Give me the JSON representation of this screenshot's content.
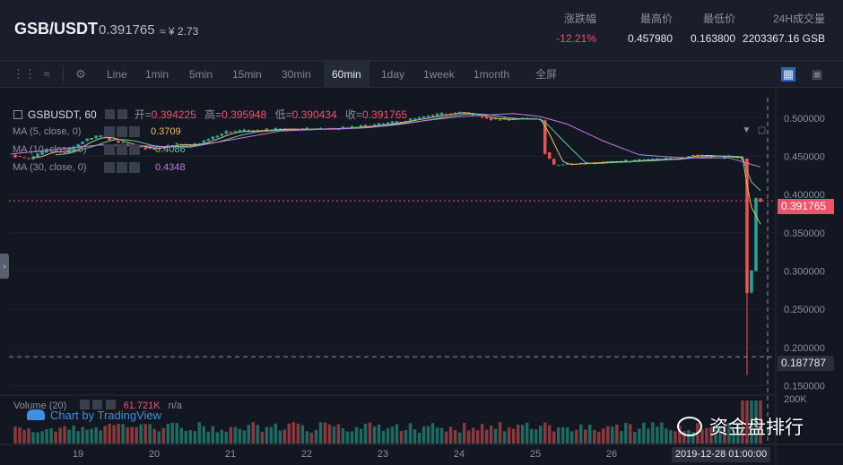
{
  "header": {
    "pair": "GSB/USDT",
    "price": "0.391765",
    "cny": "≈ ¥ 2.73",
    "stats": [
      {
        "label": "涨跌幅",
        "value": "-12.21%",
        "color": "#f0526b"
      },
      {
        "label": "最高价",
        "value": "0.457980",
        "color": "#e6e8ee"
      },
      {
        "label": "最低价",
        "value": "0.163800",
        "color": "#e6e8ee"
      },
      {
        "label": "24H成交量",
        "value": "2203367.16 GSB",
        "color": "#e6e8ee"
      }
    ]
  },
  "toolbar": {
    "intervals": [
      "Line",
      "1min",
      "5min",
      "15min",
      "30min",
      "60min",
      "1day",
      "1week",
      "1month",
      "全屏"
    ],
    "active": "60min",
    "icons": [
      "candles-icon",
      "line-style-icon",
      "settings-icon",
      "indicator-icon",
      "fullscreen-chart-icon"
    ]
  },
  "legend": {
    "symbol": "GSBUSDT, 60",
    "open_label": "开=",
    "open": "0.394225",
    "high_label": "高=",
    "high": "0.395948",
    "low_label": "低=",
    "low": "0.390434",
    "close_label": "收=",
    "close": "0.391765",
    "ma": [
      {
        "label": "MA (5, close, 0)",
        "value": "0.3709",
        "color": "#e8c15f"
      },
      {
        "label": "MA (10, close, 0)",
        "value": "0.4086",
        "color": "#6cc39b"
      },
      {
        "label": "MA (30, close, 0)",
        "value": "0.4348",
        "color": "#c27be6"
      }
    ],
    "volume_label": "Volume (20)",
    "volume_value": "61.721K",
    "volume_extra": "n/a"
  },
  "branding": {
    "tradingview": "Chart by TradingView",
    "watermark": "资金盘排行"
  },
  "price_tags": {
    "current": "0.391765",
    "low_marker": "0.187787"
  },
  "crosshair_date": "2019-12-28 01:00:00",
  "colors": {
    "up": "#26a69a",
    "down": "#ef5350",
    "background": "#131722",
    "ma5": "#e8c15f",
    "ma10": "#6cc39b",
    "ma30": "#c27be6"
  },
  "chart_data": {
    "type": "candlestick",
    "y_ticks": [
      "0.500000",
      "0.450000",
      "0.400000",
      "0.350000",
      "0.300000",
      "0.250000",
      "0.200000",
      "0.150000"
    ],
    "ylim": [
      0.14,
      0.515
    ],
    "x_ticks": [
      "19",
      "20",
      "21",
      "22",
      "23",
      "24",
      "25",
      "26"
    ],
    "volume_tick": "200K",
    "close_path": [
      [
        0,
        0.452
      ],
      [
        4,
        0.446
      ],
      [
        8,
        0.458
      ],
      [
        12,
        0.454
      ],
      [
        16,
        0.47
      ],
      [
        20,
        0.477
      ],
      [
        24,
        0.468
      ],
      [
        28,
        0.462
      ],
      [
        32,
        0.46
      ],
      [
        36,
        0.466
      ],
      [
        40,
        0.464
      ],
      [
        44,
        0.472
      ],
      [
        48,
        0.482
      ],
      [
        52,
        0.483
      ],
      [
        56,
        0.484
      ],
      [
        60,
        0.486
      ],
      [
        64,
        0.485
      ],
      [
        68,
        0.486
      ],
      [
        72,
        0.486
      ],
      [
        76,
        0.488
      ],
      [
        80,
        0.49
      ],
      [
        84,
        0.493
      ],
      [
        88,
        0.497
      ],
      [
        92,
        0.501
      ],
      [
        96,
        0.505
      ],
      [
        100,
        0.508
      ],
      [
        104,
        0.502
      ],
      [
        108,
        0.498
      ],
      [
        112,
        0.499
      ],
      [
        116,
        0.499
      ],
      [
        118,
        0.497
      ],
      [
        119,
        0.455
      ],
      [
        121,
        0.438
      ],
      [
        124,
        0.44
      ],
      [
        128,
        0.441
      ],
      [
        132,
        0.443
      ],
      [
        136,
        0.443
      ],
      [
        140,
        0.445
      ],
      [
        144,
        0.446
      ],
      [
        148,
        0.447
      ],
      [
        152,
        0.452
      ],
      [
        156,
        0.45
      ],
      [
        160,
        0.449
      ],
      [
        163,
        0.447
      ],
      [
        164,
        0.272
      ],
      [
        165,
        0.3
      ],
      [
        166,
        0.395
      ],
      [
        167,
        0.392
      ]
    ],
    "spike_low": 0.1638,
    "ma30_path": [
      [
        0,
        0.453
      ],
      [
        20,
        0.465
      ],
      [
        40,
        0.462
      ],
      [
        60,
        0.483
      ],
      [
        80,
        0.488
      ],
      [
        100,
        0.502
      ],
      [
        112,
        0.506
      ],
      [
        118,
        0.502
      ],
      [
        124,
        0.492
      ],
      [
        132,
        0.47
      ],
      [
        140,
        0.452
      ],
      [
        150,
        0.448
      ],
      [
        160,
        0.448
      ],
      [
        167,
        0.436
      ]
    ]
  }
}
